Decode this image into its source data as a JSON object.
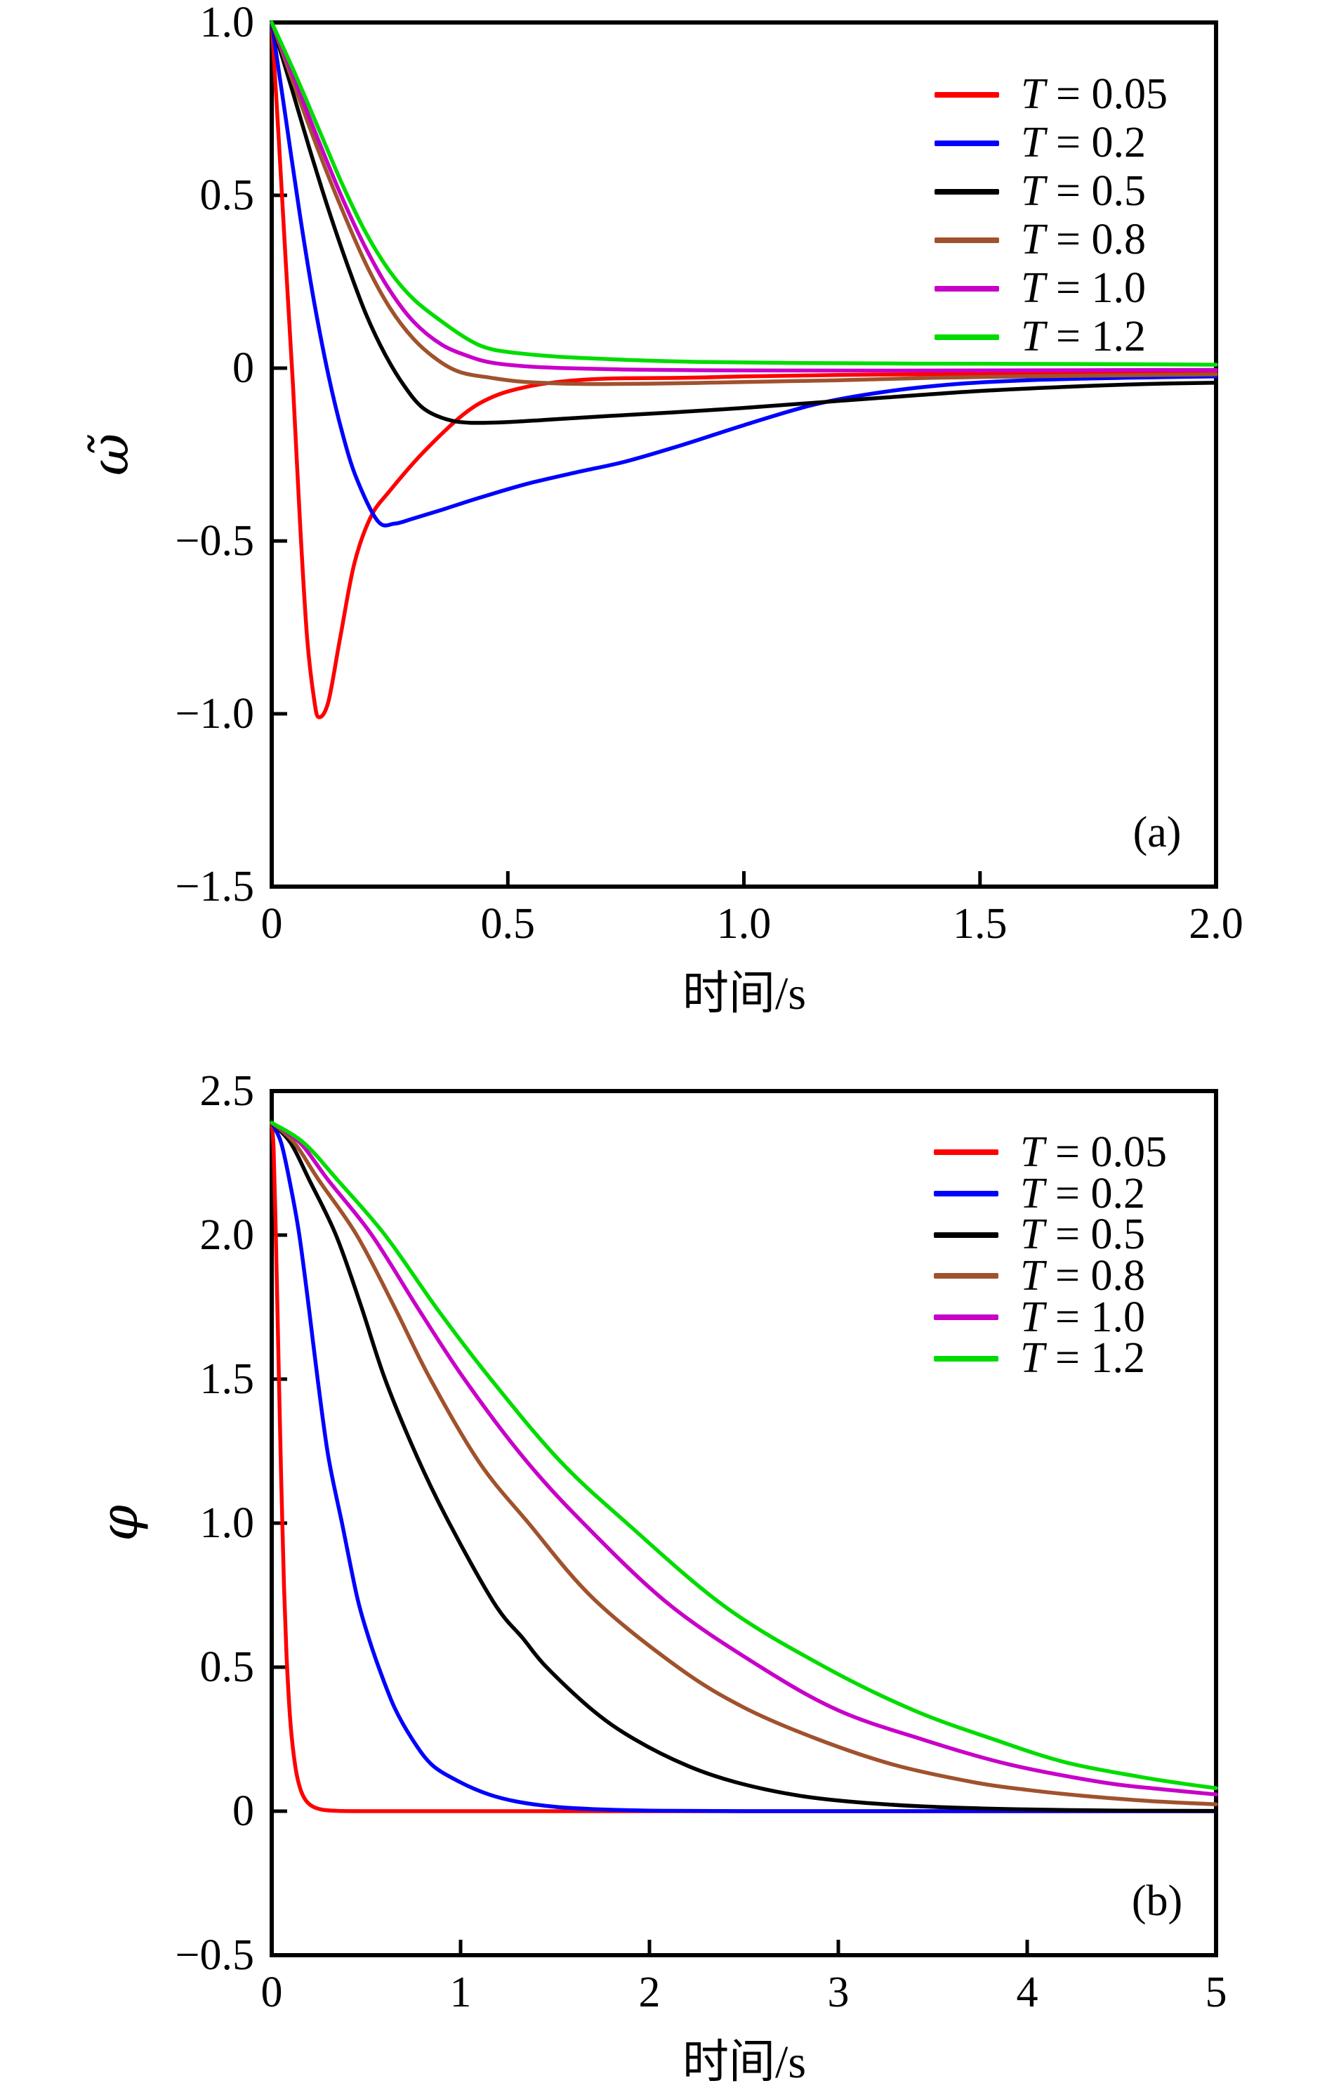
{
  "figure": {
    "background": "#ffffff",
    "description_labels": {
      "panel_a": "(a)",
      "panel_b": "(b)"
    }
  },
  "chart_data": [
    {
      "type": "line",
      "panel_label": "(a)",
      "xlabel": "时间/s",
      "ylabel": "ω̃",
      "xlim": [
        0,
        2
      ],
      "ylim": [
        -1.5,
        1.0
      ],
      "grid": false,
      "legend_position": "top-right",
      "xticks": [
        {
          "v": 0,
          "label": "0"
        },
        {
          "v": 0.5,
          "label": "0.5"
        },
        {
          "v": 1.0,
          "label": "1.0"
        },
        {
          "v": 1.5,
          "label": "1.5"
        },
        {
          "v": 2.0,
          "label": "2.0"
        }
      ],
      "yticks": [
        {
          "v": 1.0,
          "label": "1.0"
        },
        {
          "v": 0.5,
          "label": "0.5"
        },
        {
          "v": 0,
          "label": "0"
        },
        {
          "v": -0.5,
          "label": "−0.5"
        },
        {
          "v": -1.0,
          "label": "−1.0"
        },
        {
          "v": -1.5,
          "label": "−1.5"
        }
      ],
      "legend": [
        {
          "symbol": "T",
          "rest": " = 0.05",
          "color": "#ff0000"
        },
        {
          "symbol": "T",
          "rest": " = 0.2",
          "color": "#0000ff"
        },
        {
          "symbol": "T",
          "rest": " = 0.5",
          "color": "#000000"
        },
        {
          "symbol": "T",
          "rest": " = 0.8",
          "color": "#a0522d"
        },
        {
          "symbol": "T",
          "rest": " = 1.0",
          "color": "#c800c8"
        },
        {
          "symbol": "T",
          "rest": " = 1.2",
          "color": "#00dc00"
        }
      ],
      "series": [
        {
          "name": "T = 0.05",
          "color": "#ff0000",
          "x": [
            0,
            0.015,
            0.03,
            0.045,
            0.06,
            0.075,
            0.09,
            0.1,
            0.12,
            0.145,
            0.175,
            0.21,
            0.25,
            0.32,
            0.406,
            0.47,
            0.544,
            0.62,
            0.72,
            0.87,
            1.0,
            1.2,
            1.5,
            1.75,
            2.0
          ],
          "y": [
            1.0,
            0.66,
            0.3,
            -0.05,
            -0.45,
            -0.78,
            -0.96,
            -1.01,
            -0.965,
            -0.78,
            -0.565,
            -0.43,
            -0.355,
            -0.245,
            -0.134,
            -0.082,
            -0.053,
            -0.038,
            -0.03,
            -0.028,
            -0.024,
            -0.02,
            -0.016,
            -0.014,
            -0.013
          ]
        },
        {
          "name": "T = 0.2",
          "color": "#0000ff",
          "x": [
            0,
            0.03,
            0.06,
            0.09,
            0.12,
            0.15,
            0.18,
            0.225,
            0.26,
            0.3,
            0.36,
            0.44,
            0.54,
            0.65,
            0.75,
            0.87,
            1.0,
            1.15,
            1.3,
            1.45,
            1.6,
            1.8,
            2.0
          ],
          "y": [
            1.0,
            0.72,
            0.44,
            0.19,
            -0.02,
            -0.19,
            -0.32,
            -0.443,
            -0.45,
            -0.435,
            -0.41,
            -0.375,
            -0.335,
            -0.3,
            -0.27,
            -0.222,
            -0.165,
            -0.105,
            -0.068,
            -0.046,
            -0.035,
            -0.028,
            -0.024
          ]
        },
        {
          "name": "T = 0.5",
          "color": "#000000",
          "x": [
            0,
            0.04,
            0.08,
            0.12,
            0.16,
            0.2,
            0.24,
            0.28,
            0.32,
            0.37,
            0.42,
            0.5,
            0.6,
            0.72,
            0.85,
            1.0,
            1.15,
            1.3,
            1.5,
            1.7,
            1.85,
            2.0
          ],
          "y": [
            1.0,
            0.82,
            0.635,
            0.46,
            0.3,
            0.155,
            0.04,
            -0.05,
            -0.115,
            -0.148,
            -0.158,
            -0.156,
            -0.148,
            -0.138,
            -0.128,
            -0.115,
            -0.1,
            -0.085,
            -0.066,
            -0.053,
            -0.046,
            -0.042
          ]
        },
        {
          "name": "T = 0.8",
          "color": "#a0522d",
          "x": [
            0,
            0.05,
            0.1,
            0.15,
            0.2,
            0.25,
            0.3,
            0.35,
            0.4,
            0.465,
            0.52,
            0.6,
            0.7,
            0.85,
            1.0,
            1.2,
            1.4,
            1.6,
            1.8,
            2.0
          ],
          "y": [
            1.0,
            0.81,
            0.625,
            0.455,
            0.3,
            0.175,
            0.085,
            0.025,
            -0.012,
            -0.028,
            -0.038,
            -0.044,
            -0.046,
            -0.044,
            -0.04,
            -0.035,
            -0.028,
            -0.024,
            -0.021,
            -0.018
          ]
        },
        {
          "name": "T = 1.0",
          "color": "#c800c8",
          "x": [
            0,
            0.05,
            0.1,
            0.15,
            0.2,
            0.25,
            0.3,
            0.36,
            0.42,
            0.465,
            0.53,
            0.62,
            0.75,
            0.9,
            1.1,
            1.4,
            1.7,
            2.0
          ],
          "y": [
            1.0,
            0.83,
            0.655,
            0.49,
            0.345,
            0.225,
            0.135,
            0.068,
            0.033,
            0.016,
            0.006,
            0.0,
            -0.004,
            -0.006,
            -0.007,
            -0.007,
            -0.006,
            -0.005
          ]
        },
        {
          "name": "T = 1.2",
          "color": "#00dc00",
          "x": [
            0,
            0.05,
            0.1,
            0.15,
            0.2,
            0.25,
            0.3,
            0.36,
            0.42,
            0.465,
            0.53,
            0.62,
            0.75,
            0.9,
            1.1,
            1.36,
            1.7,
            2.0
          ],
          "y": [
            1.0,
            0.85,
            0.69,
            0.53,
            0.39,
            0.28,
            0.2,
            0.135,
            0.08,
            0.055,
            0.042,
            0.032,
            0.024,
            0.018,
            0.015,
            0.013,
            0.012,
            0.01
          ]
        }
      ]
    },
    {
      "type": "line",
      "panel_label": "(b)",
      "xlabel": "时间/s",
      "ylabel": "φ",
      "xlim": [
        0,
        5
      ],
      "ylim": [
        -0.5,
        2.5
      ],
      "grid": false,
      "legend_position": "top-right",
      "xticks": [
        {
          "v": 0,
          "label": "0"
        },
        {
          "v": 1,
          "label": "1"
        },
        {
          "v": 2,
          "label": "2"
        },
        {
          "v": 3,
          "label": "3"
        },
        {
          "v": 4,
          "label": "4"
        },
        {
          "v": 5,
          "label": "5"
        }
      ],
      "yticks": [
        {
          "v": 2.5,
          "label": "2.5"
        },
        {
          "v": 2.0,
          "label": "2.0"
        },
        {
          "v": 1.5,
          "label": "1.5"
        },
        {
          "v": 1.0,
          "label": "1.0"
        },
        {
          "v": 0.5,
          "label": "0.5"
        },
        {
          "v": 0,
          "label": "0"
        },
        {
          "v": -0.5,
          "label": "−0.5"
        }
      ],
      "legend": [
        {
          "symbol": "T",
          "rest": " = 0.05",
          "color": "#ff0000"
        },
        {
          "symbol": "T",
          "rest": " = 0.2",
          "color": "#0000ff"
        },
        {
          "symbol": "T",
          "rest": " = 0.5",
          "color": "#000000"
        },
        {
          "symbol": "T",
          "rest": " = 0.8",
          "color": "#a0522d"
        },
        {
          "symbol": "T",
          "rest": " = 1.0",
          "color": "#c800c8"
        },
        {
          "symbol": "T",
          "rest": " = 1.2",
          "color": "#00dc00"
        }
      ],
      "series": [
        {
          "name": "T = 0.05",
          "color": "#ff0000",
          "x": [
            0,
            0.01,
            0.02,
            0.035,
            0.05,
            0.065,
            0.08,
            0.1,
            0.125,
            0.15,
            0.18,
            0.22,
            0.27,
            0.35,
            0.5,
            0.8,
            1.5,
            2.5,
            3.5,
            5.0
          ],
          "y": [
            2.39,
            2.3,
            2.05,
            1.6,
            1.15,
            0.78,
            0.52,
            0.3,
            0.155,
            0.08,
            0.038,
            0.015,
            0.005,
            0.001,
            0,
            0,
            0,
            0,
            0,
            0
          ]
        },
        {
          "name": "T = 0.2",
          "color": "#0000ff",
          "x": [
            0,
            0.05,
            0.1,
            0.146,
            0.2,
            0.243,
            0.3,
            0.372,
            0.45,
            0.5,
            0.566,
            0.65,
            0.744,
            0.85,
            1.0,
            1.15,
            1.3,
            1.5,
            1.7,
            2.0,
            2.5,
            3.5,
            5.0
          ],
          "y": [
            2.39,
            2.32,
            2.17,
            2.0,
            1.73,
            1.5,
            1.23,
            1.0,
            0.75,
            0.63,
            0.5,
            0.36,
            0.25,
            0.16,
            0.1,
            0.058,
            0.033,
            0.015,
            0.007,
            0.002,
            0,
            0,
            0
          ]
        },
        {
          "name": "T = 0.5",
          "color": "#000000",
          "x": [
            0,
            0.1,
            0.2,
            0.34,
            0.47,
            0.6,
            0.77,
            0.94,
            1.18,
            1.33,
            1.455,
            1.7,
            1.92,
            2.2,
            2.46,
            2.78,
            3.1,
            3.5,
            4.0,
            4.5,
            5.0
          ],
          "y": [
            2.39,
            2.32,
            2.19,
            2.0,
            1.76,
            1.5,
            1.23,
            1.0,
            0.72,
            0.6,
            0.5,
            0.35,
            0.25,
            0.158,
            0.1,
            0.055,
            0.031,
            0.015,
            0.006,
            0.002,
            0.001
          ]
        },
        {
          "name": "T = 0.8",
          "color": "#a0522d",
          "x": [
            0,
            0.12,
            0.25,
            0.45,
            0.65,
            0.84,
            1.1,
            1.36,
            1.7,
            2.15,
            2.5,
            2.89,
            3.3,
            3.72,
            4.0,
            4.3,
            4.65,
            5.0
          ],
          "y": [
            2.39,
            2.32,
            2.19,
            2.0,
            1.75,
            1.5,
            1.21,
            1.0,
            0.74,
            0.5,
            0.36,
            0.25,
            0.16,
            0.1,
            0.074,
            0.053,
            0.035,
            0.024
          ]
        },
        {
          "name": "T = 1.0",
          "color": "#c800c8",
          "x": [
            0,
            0.15,
            0.3,
            0.53,
            0.78,
            1.02,
            1.33,
            1.65,
            2.1,
            2.59,
            3.0,
            3.44,
            3.9,
            4.4,
            4.7,
            5.0
          ],
          "y": [
            2.39,
            2.32,
            2.19,
            2.0,
            1.74,
            1.5,
            1.23,
            1.0,
            0.72,
            0.5,
            0.35,
            0.25,
            0.163,
            0.1,
            0.077,
            0.058
          ]
        },
        {
          "name": "T = 1.2",
          "color": "#00dc00",
          "x": [
            0,
            0.17,
            0.35,
            0.6,
            0.88,
            1.16,
            1.52,
            1.88,
            2.4,
            2.93,
            3.4,
            3.82,
            4.2,
            4.59,
            4.8,
            5.0
          ],
          "y": [
            2.39,
            2.32,
            2.19,
            2.0,
            1.74,
            1.5,
            1.22,
            1.0,
            0.71,
            0.5,
            0.35,
            0.25,
            0.17,
            0.12,
            0.098,
            0.08
          ]
        }
      ]
    }
  ]
}
